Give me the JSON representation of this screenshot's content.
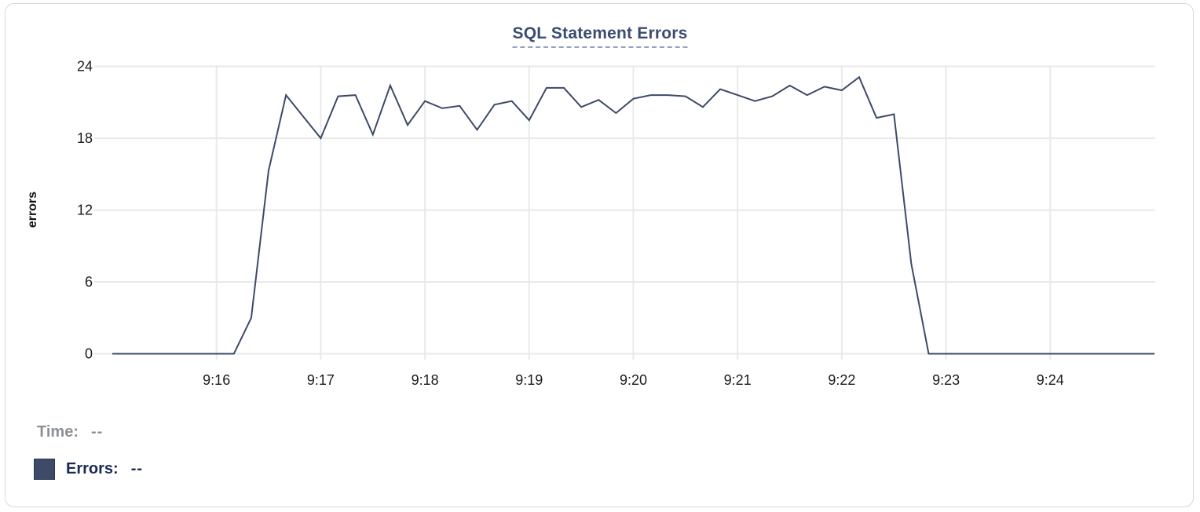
{
  "chart": {
    "title": "SQL Statement Errors"
  },
  "readout": {
    "time_label": "Time:",
    "time_value": "--",
    "errors_label": "Errors:",
    "errors_value": "--"
  },
  "colors": {
    "line": "#3d4a67",
    "grid": "#e9e9e9",
    "tick_text": "#1b1b1b",
    "axis_label_text": "#111111",
    "title_text": "#3c4c6f",
    "title_underline": "#97a3be",
    "readout_time_text": "#8b9096",
    "readout_errors_text": "#1c2a52",
    "legend_swatch": "#3e4b68"
  },
  "chart_data": {
    "type": "line",
    "title": "SQL Statement Errors",
    "xlabel": "",
    "ylabel": "errors",
    "ylim": [
      0,
      24
    ],
    "y_ticks": [
      0,
      6,
      12,
      18,
      24
    ],
    "x_ticks": [
      "9:16",
      "9:17",
      "9:18",
      "9:19",
      "9:20",
      "9:21",
      "9:22",
      "9:23",
      "9:24"
    ],
    "grid": true,
    "legend_position": "below-left",
    "series": [
      {
        "name": "Errors",
        "start_time": "9:15:00",
        "end_time": "9:25:00",
        "step_seconds": 10,
        "values": [
          0,
          0,
          0,
          0,
          0,
          0,
          0,
          0,
          3,
          15.3,
          21.6,
          19.8,
          18,
          21.5,
          21.6,
          18.3,
          22.4,
          19.1,
          21.1,
          20.5,
          20.7,
          18.7,
          20.8,
          21.1,
          19.5,
          22.2,
          22.2,
          20.6,
          21.2,
          20.1,
          21.3,
          21.6,
          21.6,
          21.5,
          20.6,
          22.1,
          21.6,
          21.1,
          21.5,
          22.4,
          21.6,
          22.3,
          22,
          23.1,
          19.7,
          20,
          7.5,
          0,
          0,
          0,
          0,
          0,
          0,
          0,
          0,
          0,
          0,
          0,
          0,
          0,
          0
        ]
      }
    ]
  }
}
